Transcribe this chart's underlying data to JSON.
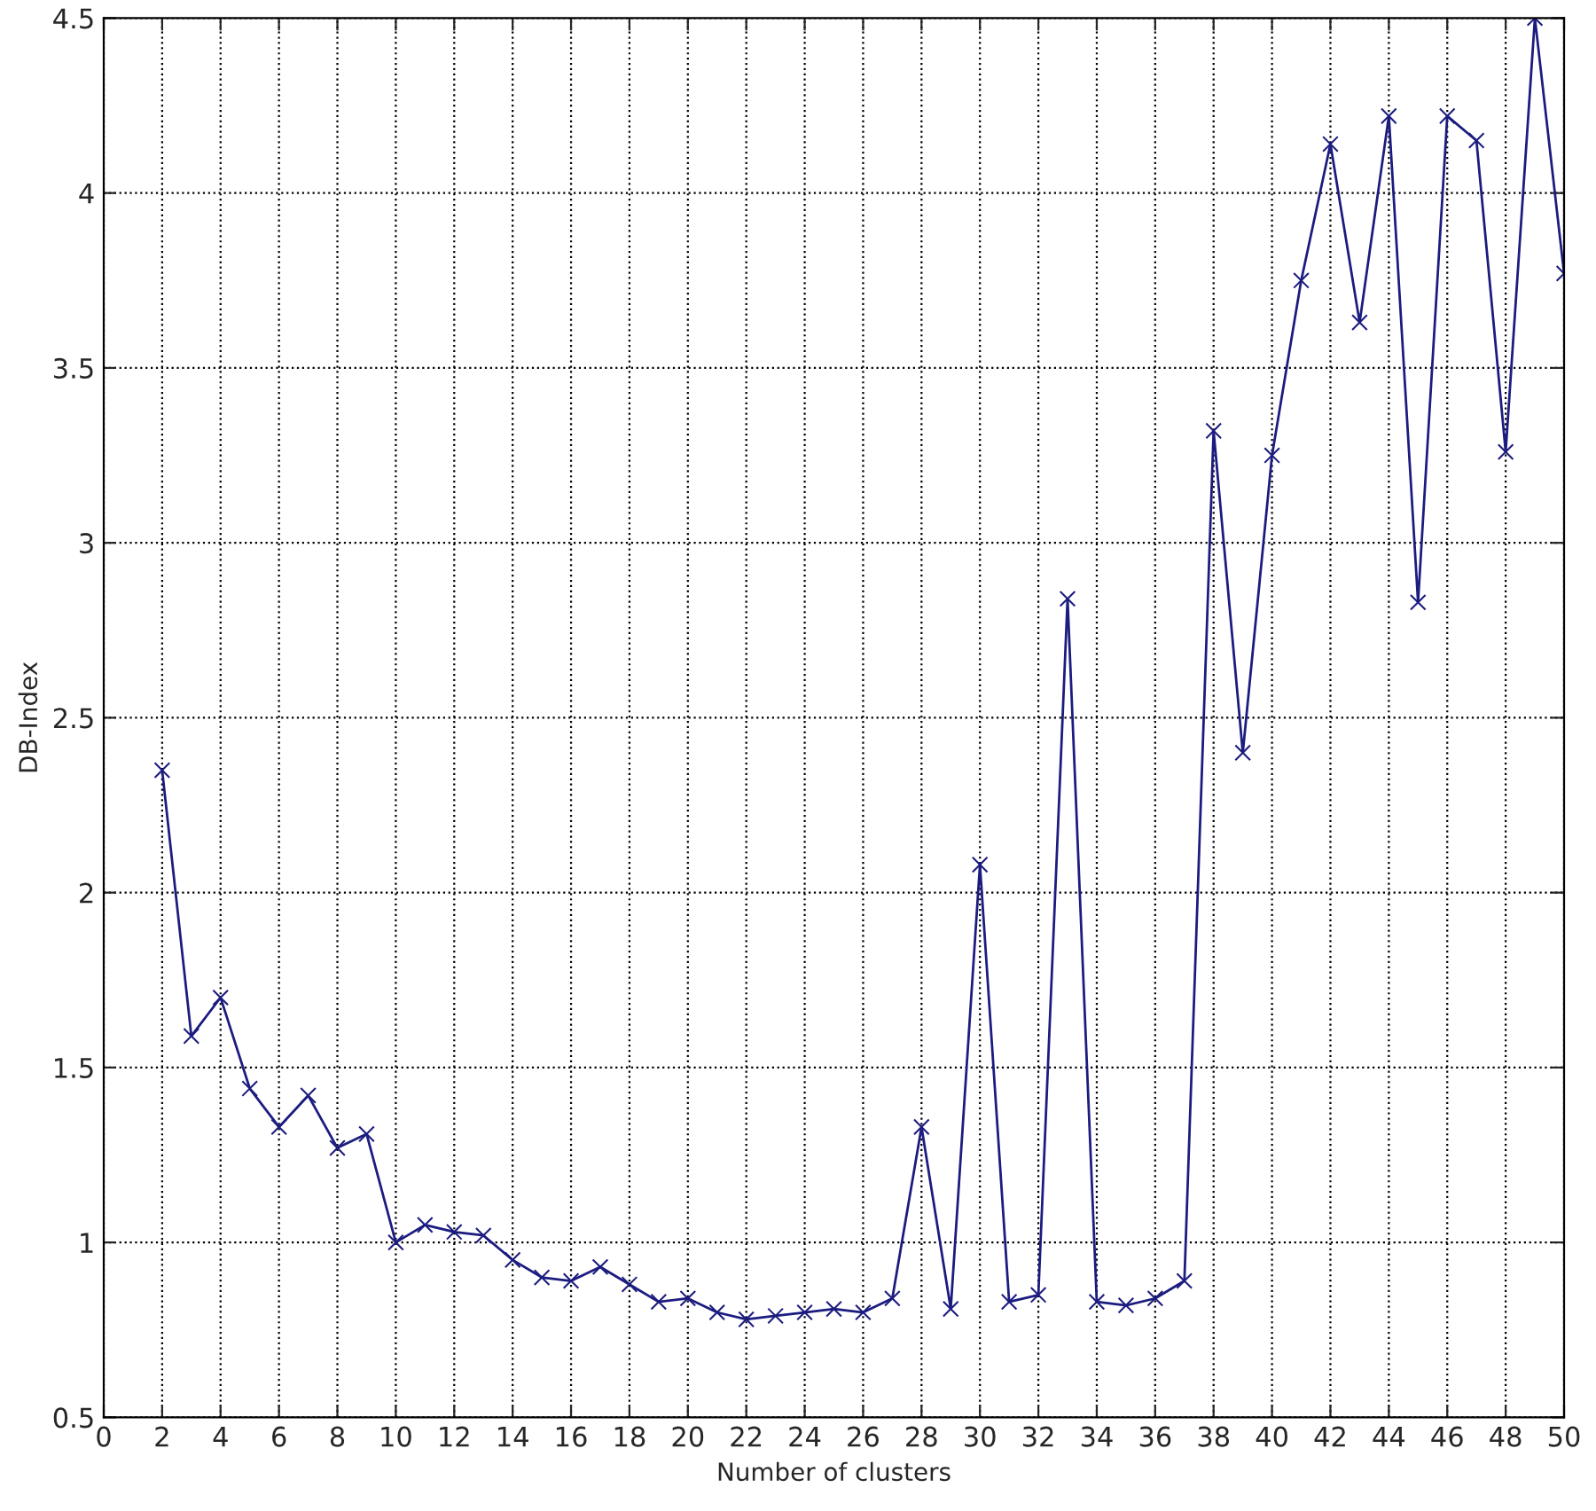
{
  "chart_data": {
    "type": "line",
    "xlabel": "Number of clusters",
    "ylabel": "DB-Index",
    "x": [
      2,
      3,
      4,
      5,
      6,
      7,
      8,
      9,
      10,
      11,
      12,
      13,
      14,
      15,
      16,
      17,
      18,
      19,
      20,
      21,
      22,
      23,
      24,
      25,
      26,
      27,
      28,
      29,
      30,
      31,
      32,
      33,
      34,
      35,
      36,
      37,
      38,
      39,
      40,
      41,
      42,
      43,
      44,
      45,
      46,
      47,
      48,
      49,
      50
    ],
    "series": [
      {
        "color": "#1c1c80",
        "values": [
          2.35,
          1.59,
          1.7,
          1.44,
          1.33,
          1.42,
          1.27,
          1.31,
          1.0,
          1.05,
          1.03,
          1.02,
          0.95,
          0.9,
          0.89,
          0.93,
          0.88,
          0.83,
          0.84,
          0.8,
          0.78,
          0.79,
          0.8,
          0.81,
          0.8,
          0.84,
          1.33,
          0.81,
          2.08,
          0.83,
          0.85,
          2.84,
          0.83,
          0.82,
          0.84,
          0.89,
          3.32,
          2.4,
          3.25,
          3.75,
          4.14,
          3.63,
          4.22,
          2.83,
          4.22,
          4.15,
          3.26,
          4.5,
          3.77
        ]
      }
    ],
    "xlim": [
      0,
      50
    ],
    "xticks": [
      0,
      2,
      4,
      6,
      8,
      10,
      12,
      14,
      16,
      18,
      20,
      22,
      24,
      26,
      28,
      30,
      32,
      34,
      36,
      38,
      40,
      42,
      44,
      46,
      48,
      50
    ],
    "ylim": [
      0.5,
      4.5
    ],
    "yticks": [
      0.5,
      1,
      1.5,
      2,
      2.5,
      3,
      3.5,
      4,
      4.5
    ],
    "grid": true,
    "marker": "cross",
    "line_style": "solid"
  }
}
